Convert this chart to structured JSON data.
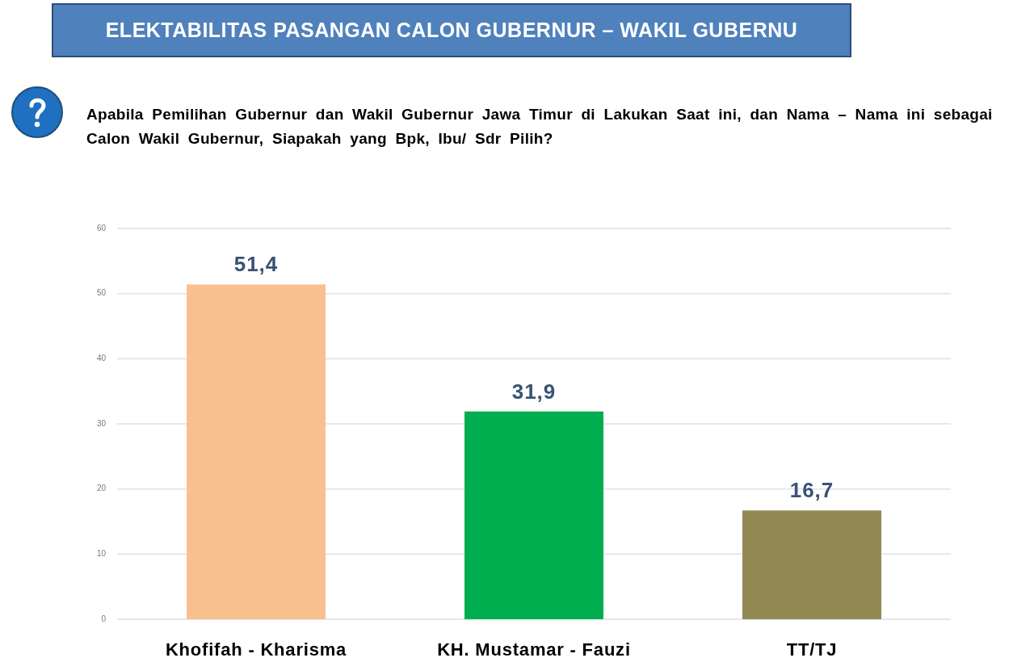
{
  "chart_data": {
    "type": "bar",
    "title": "ELEKTABILITAS PASANGAN CALON GUBERNUR – WAKIL GUBERNU",
    "subtitle": "Apabila Pemilihan Gubernur dan Wakil Gubernur Jawa Timur di Lakukan Saat ini, dan Nama – Nama ini sebagai Calon Wakil Gubernur, Siapakah yang Bpk, Ibu/ Sdr Pilih?",
    "categories": [
      "Khofifah - Kharisma",
      "KH. Mustamar - Fauzi",
      "TT/TJ"
    ],
    "values": [
      51.4,
      31.9,
      16.7
    ],
    "colors": [
      "#f9c08f",
      "#00ae4f",
      "#938953"
    ],
    "value_labels": [
      "51,4",
      "31,9",
      "16,7"
    ],
    "ylim": [
      0,
      60
    ],
    "yticks": [
      0,
      10,
      20,
      30,
      40,
      50,
      60
    ],
    "grid": "y"
  }
}
